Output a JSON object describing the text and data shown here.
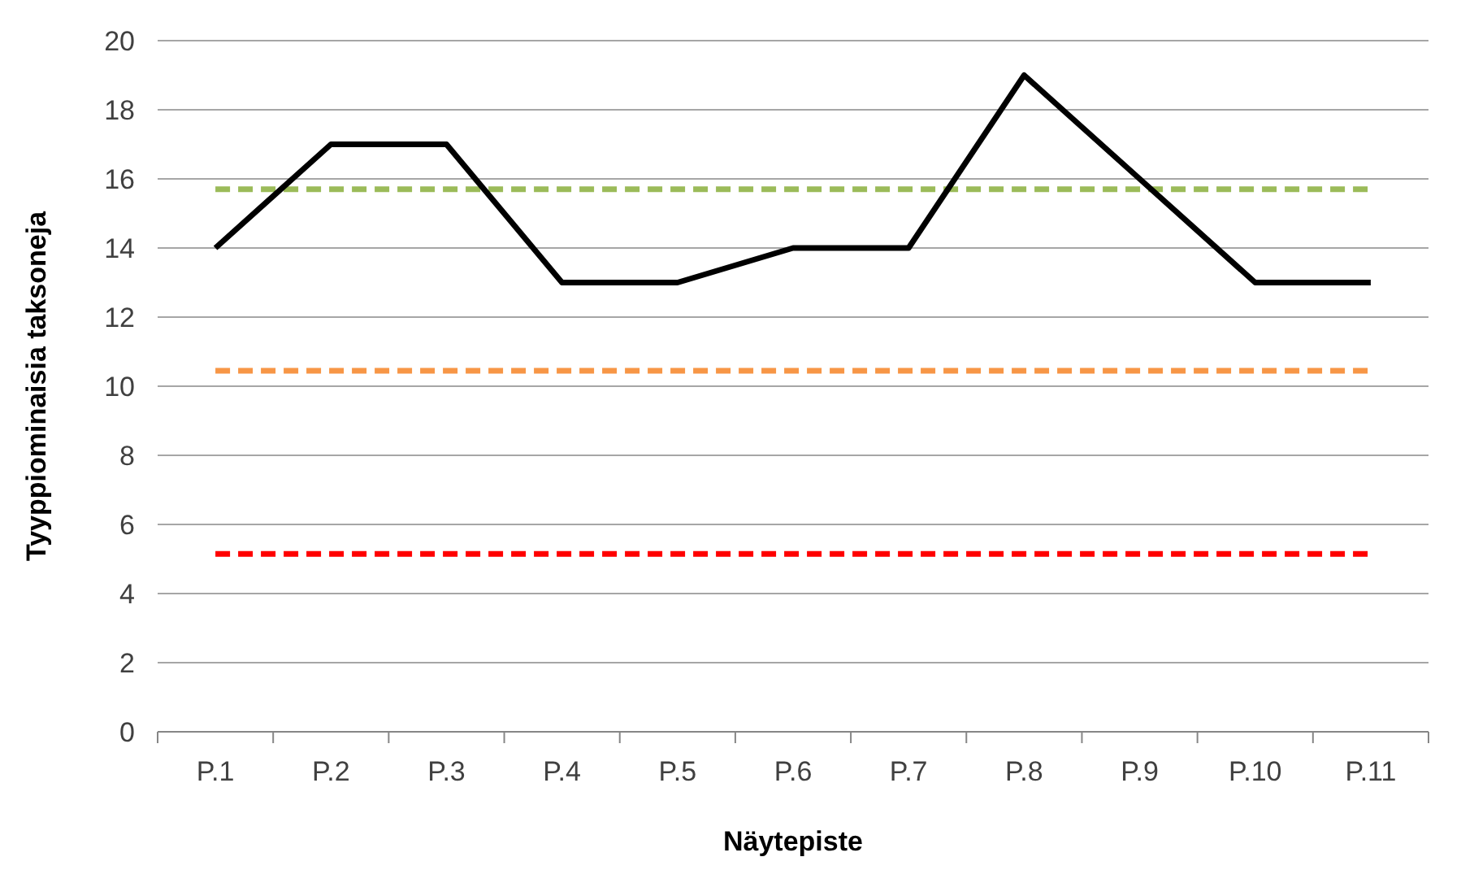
{
  "chart_data": {
    "type": "line",
    "xlabel": "Näytepiste",
    "ylabel": "Tyyppiominaisia taksoneja",
    "categories": [
      "P.1",
      "P.2",
      "P.3",
      "P.4",
      "P.5",
      "P.6",
      "P.7",
      "P.8",
      "P.9",
      "P.10",
      "P.11"
    ],
    "series": [
      {
        "color": "#000000",
        "values": [
          14,
          17,
          17,
          13,
          13,
          14,
          14,
          19,
          16,
          13,
          13
        ]
      }
    ],
    "ylim": [
      0,
      20
    ],
    "yticks": [
      0,
      2,
      4,
      6,
      8,
      10,
      12,
      14,
      16,
      18,
      20
    ],
    "grid": "y",
    "marker": "none",
    "line_style": "solid",
    "ref_lines": [
      {
        "axis": "y",
        "value": 15.7,
        "color": "#9bbb59",
        "line_style": "dashed"
      },
      {
        "axis": "y",
        "value": 10.45,
        "color": "#f79646",
        "line_style": "dashed"
      },
      {
        "axis": "y",
        "value": 5.15,
        "color": "#ff0000",
        "line_style": "dashed"
      }
    ]
  }
}
